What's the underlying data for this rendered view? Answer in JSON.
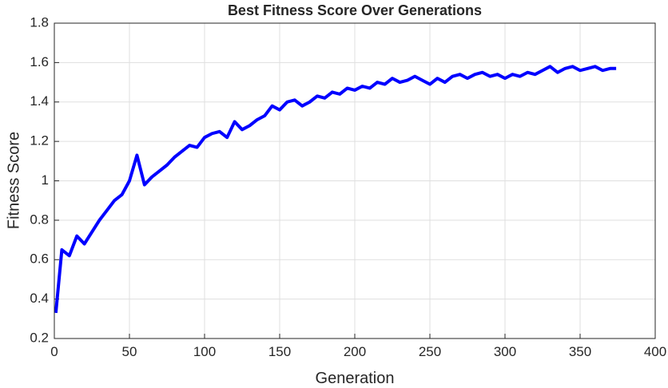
{
  "chart_data": {
    "type": "line",
    "title": "Best Fitness Score Over Generations",
    "xlabel": "Generation",
    "ylabel": "Fitness Score",
    "x": [
      1,
      5,
      10,
      15,
      20,
      25,
      30,
      35,
      40,
      45,
      50,
      55,
      60,
      65,
      70,
      75,
      80,
      85,
      90,
      95,
      100,
      105,
      110,
      115,
      120,
      125,
      130,
      135,
      140,
      145,
      150,
      155,
      160,
      165,
      170,
      175,
      180,
      185,
      190,
      195,
      200,
      205,
      210,
      215,
      220,
      225,
      230,
      235,
      240,
      245,
      250,
      255,
      260,
      265,
      270,
      275,
      280,
      285,
      290,
      295,
      300,
      305,
      310,
      315,
      320,
      325,
      330,
      335,
      340,
      345,
      350,
      355,
      360,
      365,
      370,
      374
    ],
    "series": [
      {
        "name": "Best Fitness",
        "color": "#0000ff",
        "values": [
          0.33,
          0.65,
          0.62,
          0.72,
          0.68,
          0.74,
          0.8,
          0.85,
          0.9,
          0.93,
          1.0,
          1.13,
          0.98,
          1.02,
          1.05,
          1.08,
          1.12,
          1.15,
          1.18,
          1.17,
          1.22,
          1.24,
          1.25,
          1.22,
          1.3,
          1.26,
          1.28,
          1.31,
          1.33,
          1.38,
          1.36,
          1.4,
          1.41,
          1.38,
          1.4,
          1.43,
          1.42,
          1.45,
          1.44,
          1.47,
          1.46,
          1.48,
          1.47,
          1.5,
          1.49,
          1.52,
          1.5,
          1.51,
          1.53,
          1.51,
          1.49,
          1.52,
          1.5,
          1.53,
          1.54,
          1.52,
          1.54,
          1.55,
          1.53,
          1.54,
          1.52,
          1.54,
          1.53,
          1.55,
          1.54,
          1.56,
          1.58,
          1.55,
          1.57,
          1.58,
          1.56,
          1.57,
          1.58,
          1.56,
          1.57,
          1.57
        ]
      }
    ],
    "xlim": [
      0,
      400
    ],
    "xticks": [
      0,
      50,
      100,
      150,
      200,
      250,
      300,
      350,
      400
    ],
    "ylim": [
      0.2,
      1.8
    ],
    "yticks": [
      0.2,
      0.4,
      0.6,
      0.8,
      1,
      1.2,
      1.4,
      1.6,
      1.8
    ],
    "grid": true
  }
}
